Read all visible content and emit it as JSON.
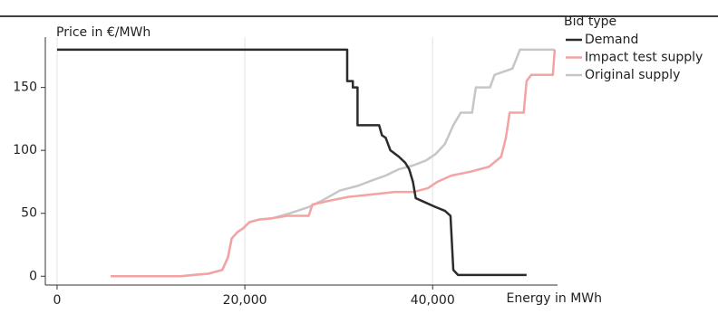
{
  "chart_data": {
    "type": "line",
    "y_label": "Price in €/MWh",
    "x_label": "Energy in MWh",
    "legend_title": "Bid type",
    "xlim": [
      -1250,
      53300
    ],
    "ylim": [
      -7,
      190
    ],
    "xticks": [
      0,
      {
        "value": 20000,
        "label": "20,000"
      },
      {
        "value": 40000,
        "label": "40,000"
      }
    ],
    "yticks": [
      0,
      50,
      100,
      150
    ],
    "grid": true,
    "legend": "right",
    "series": [
      {
        "name": "Demand",
        "color": "#2b2b2b",
        "x": [
          0,
          30900,
          30900,
          31500,
          31500,
          32000,
          32000,
          34300,
          34600,
          35000,
          35500,
          36400,
          37100,
          37500,
          37900,
          38200,
          38800,
          40300,
          41300,
          41900,
          42200,
          42700,
          50000
        ],
        "values": [
          180,
          180,
          155,
          155,
          150,
          150,
          120,
          120,
          112,
          110,
          100,
          95,
          90,
          85,
          75,
          62,
          60,
          55,
          52,
          48,
          5,
          1,
          1
        ]
      },
      {
        "name": "Impact test supply",
        "color": "#f4a3a3",
        "x": [
          5700,
          13200,
          14500,
          16100,
          17600,
          18200,
          18600,
          19200,
          19800,
          20500,
          21500,
          22900,
          24500,
          26800,
          27200,
          29000,
          31000,
          33500,
          36000,
          38000,
          39500,
          40500,
          42000,
          44000,
          46000,
          47300,
          47800,
          48200,
          49700,
          50000,
          50500,
          52800,
          53000
        ],
        "values": [
          0,
          0,
          1,
          2,
          5,
          15,
          30,
          35,
          38,
          43,
          45,
          46,
          48,
          48,
          57,
          60,
          63,
          65,
          67,
          67,
          70,
          75,
          80,
          83,
          87,
          95,
          110,
          130,
          130,
          155,
          160,
          160,
          180
        ]
      },
      {
        "name": "Original supply",
        "color": "#c6c6c6",
        "x": [
          5700,
          13200,
          14500,
          16100,
          17600,
          18200,
          18600,
          19200,
          19800,
          20500,
          21500,
          22900,
          24800,
          26800,
          28200,
          30100,
          32100,
          33500,
          35000,
          36400,
          37900,
          39300,
          40300,
          41300,
          42200,
          43000,
          44200,
          44600,
          46100,
          46600,
          48500,
          49300,
          53000
        ],
        "values": [
          0,
          0,
          1,
          2,
          5,
          15,
          30,
          35,
          38,
          43,
          45,
          46,
          50,
          55,
          60,
          68,
          72,
          76,
          80,
          85,
          88,
          92,
          97,
          105,
          120,
          130,
          130,
          150,
          150,
          160,
          165,
          180,
          180
        ]
      }
    ]
  }
}
